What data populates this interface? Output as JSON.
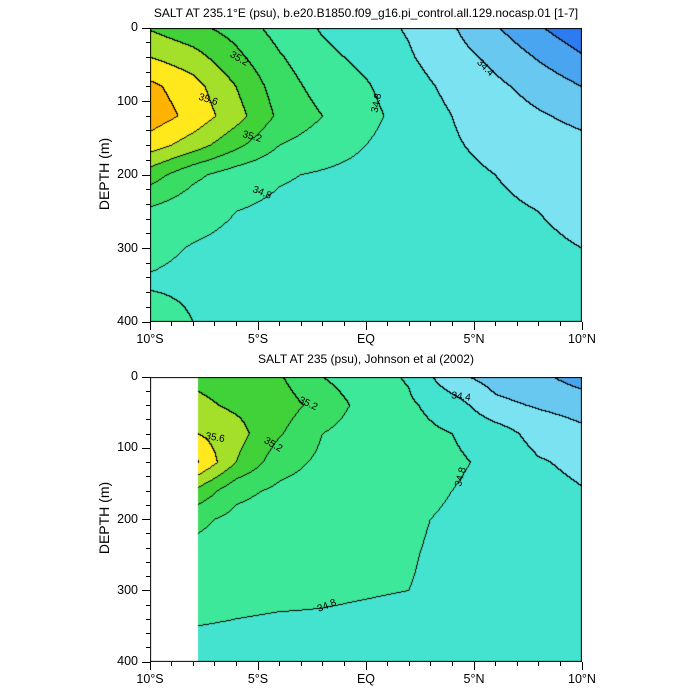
{
  "page": {
    "background": "#ffffff"
  },
  "chart_data": [
    {
      "type": "heatmap",
      "subtype": "filled_contour",
      "title": "SALT AT 235.1°E (psu), b.e20.B1850.f09_g16.pi_control.all.129.nocasp.01 [1-7]",
      "ylabel": "DEPTH (m)",
      "x_range": [
        -10,
        10
      ],
      "y_range": [
        0,
        400
      ],
      "data_min_x": -10,
      "xtick_values": [
        -10,
        -5,
        0,
        5,
        10
      ],
      "xtick_labels": [
        "10°S",
        "5°S",
        "EQ",
        "5°N",
        "10°N"
      ],
      "xminor_step": 1,
      "ytick_values": [
        0,
        100,
        200,
        300,
        400
      ],
      "ytick_labels": [
        "0",
        "100",
        "200",
        "300",
        "400"
      ],
      "yminor_step": 20,
      "levels": [
        34.0,
        34.2,
        34.4,
        34.6,
        34.8,
        35.0,
        35.2,
        35.4,
        35.6,
        35.8
      ],
      "band_colors": [
        "#2d7bf0",
        "#4aa5f0",
        "#68c8f0",
        "#7be2f2",
        "#43e3cf",
        "#3ee89a",
        "#39dd63",
        "#40d238",
        "#a4e02a",
        "#ffe81c",
        "#ffb300"
      ],
      "line_color": "#000000",
      "x": [
        -10,
        -8,
        -6,
        -4,
        -2,
        0,
        2,
        4,
        6,
        8,
        10
      ],
      "y": [
        0,
        40,
        80,
        120,
        160,
        200,
        250,
        300,
        350,
        400
      ],
      "values": [
        [
          35.38,
          35.25,
          35.12,
          34.92,
          34.78,
          34.68,
          34.58,
          34.42,
          34.22,
          34.02,
          33.85
        ],
        [
          35.6,
          35.48,
          35.25,
          35.02,
          34.85,
          34.75,
          34.62,
          34.48,
          34.35,
          34.18,
          34.02
        ],
        [
          35.85,
          35.68,
          35.4,
          35.1,
          34.92,
          34.82,
          34.68,
          34.55,
          34.44,
          34.33,
          34.2
        ],
        [
          35.92,
          35.74,
          35.48,
          35.16,
          35.0,
          34.86,
          34.72,
          34.6,
          34.5,
          34.42,
          34.35
        ],
        [
          35.7,
          35.5,
          35.25,
          35.0,
          34.9,
          34.8,
          34.7,
          34.62,
          34.55,
          34.5,
          34.45
        ],
        [
          35.3,
          35.05,
          34.9,
          34.82,
          34.78,
          34.74,
          34.7,
          34.65,
          34.6,
          34.55,
          34.5
        ],
        [
          34.96,
          34.86,
          34.8,
          34.76,
          34.74,
          34.72,
          34.7,
          34.67,
          34.63,
          34.6,
          34.57
        ],
        [
          34.84,
          34.79,
          34.76,
          34.74,
          34.72,
          34.7,
          34.68,
          34.66,
          34.64,
          34.62,
          34.6
        ],
        [
          34.78,
          34.76,
          34.74,
          34.72,
          34.7,
          34.69,
          34.67,
          34.66,
          34.65,
          34.63,
          34.62
        ],
        [
          34.92,
          34.8,
          34.75,
          34.72,
          34.7,
          34.69,
          34.68,
          34.66,
          34.65,
          34.64,
          34.63
        ]
      ],
      "contour_labels": [
        {
          "text": "35.2",
          "lat": -5.9,
          "depth": 42,
          "angle": 30
        },
        {
          "text": "35.6",
          "lat": -7.3,
          "depth": 98,
          "angle": 18
        },
        {
          "text": "35.2",
          "lat": -5.3,
          "depth": 148,
          "angle": 16
        },
        {
          "text": "34.8",
          "lat": -4.8,
          "depth": 225,
          "angle": 22
        },
        {
          "text": "34.8",
          "lat": 0.5,
          "depth": 102,
          "angle": -78
        },
        {
          "text": "34.4",
          "lat": 5.5,
          "depth": 55,
          "angle": 45
        }
      ]
    },
    {
      "type": "heatmap",
      "subtype": "filled_contour",
      "title": "SALT AT 235 (psu), Johnson et al (2002)",
      "ylabel": "DEPTH (m)",
      "x_range": [
        -10,
        10
      ],
      "y_range": [
        0,
        400
      ],
      "data_min_x": -7.8,
      "xtick_values": [
        -10,
        -5,
        0,
        5,
        10
      ],
      "xtick_labels": [
        "10°S",
        "5°S",
        "EQ",
        "5°N",
        "10°N"
      ],
      "xminor_step": 1,
      "ytick_values": [
        0,
        100,
        200,
        300,
        400
      ],
      "ytick_labels": [
        "0",
        "100",
        "200",
        "300",
        "400"
      ],
      "yminor_step": 20,
      "levels": [
        34.0,
        34.2,
        34.4,
        34.6,
        34.8,
        35.0,
        35.2,
        35.4,
        35.6,
        35.8
      ],
      "band_colors": [
        "#2d7bf0",
        "#4aa5f0",
        "#68c8f0",
        "#7be2f2",
        "#43e3cf",
        "#3ee89a",
        "#39dd63",
        "#40d238",
        "#a4e02a",
        "#ffe81c",
        "#ffb300"
      ],
      "line_color": "#000000",
      "x": [
        -7.8,
        -6,
        -4,
        -2,
        0,
        2,
        4,
        6,
        8,
        10
      ],
      "y": [
        0,
        40,
        80,
        120,
        160,
        200,
        250,
        300,
        350,
        400
      ],
      "values": [
        [
          35.35,
          35.3,
          35.22,
          35.0,
          34.88,
          34.78,
          34.45,
          34.32,
          34.25,
          34.1
        ],
        [
          35.45,
          35.36,
          35.3,
          35.12,
          34.93,
          34.83,
          34.7,
          34.45,
          34.38,
          34.33
        ],
        [
          35.6,
          35.48,
          35.22,
          35.0,
          34.9,
          34.86,
          34.8,
          34.7,
          34.52,
          34.44
        ],
        [
          35.82,
          35.4,
          35.08,
          34.96,
          34.9,
          34.87,
          34.83,
          34.76,
          34.62,
          34.55
        ],
        [
          35.35,
          35.06,
          34.96,
          34.91,
          34.88,
          34.85,
          34.8,
          34.74,
          34.67,
          34.61
        ],
        [
          35.05,
          34.94,
          34.89,
          34.87,
          34.85,
          34.82,
          34.78,
          34.73,
          34.69,
          34.66
        ],
        [
          34.93,
          34.88,
          34.85,
          34.84,
          34.83,
          34.81,
          34.77,
          34.74,
          34.71,
          34.68
        ],
        [
          34.86,
          34.84,
          34.83,
          34.82,
          34.81,
          34.8,
          34.77,
          34.74,
          34.72,
          34.7
        ],
        [
          34.8,
          34.79,
          34.78,
          34.78,
          34.77,
          34.76,
          34.74,
          34.72,
          34.71,
          34.7
        ],
        [
          34.77,
          34.76,
          34.76,
          34.75,
          34.75,
          34.74,
          34.73,
          34.72,
          34.71,
          34.7
        ]
      ],
      "contour_labels": [
        {
          "text": "35.2",
          "lat": -2.7,
          "depth": 38,
          "angle": 25
        },
        {
          "text": "35.6",
          "lat": -7.0,
          "depth": 86,
          "angle": 10
        },
        {
          "text": "35.2",
          "lat": -4.3,
          "depth": 96,
          "angle": 30
        },
        {
          "text": "34.4",
          "lat": 4.4,
          "depth": 28,
          "angle": 8
        },
        {
          "text": "34.8",
          "lat": 4.4,
          "depth": 140,
          "angle": -75
        },
        {
          "text": "34.8",
          "lat": -1.8,
          "depth": 322,
          "angle": -22
        }
      ]
    }
  ]
}
